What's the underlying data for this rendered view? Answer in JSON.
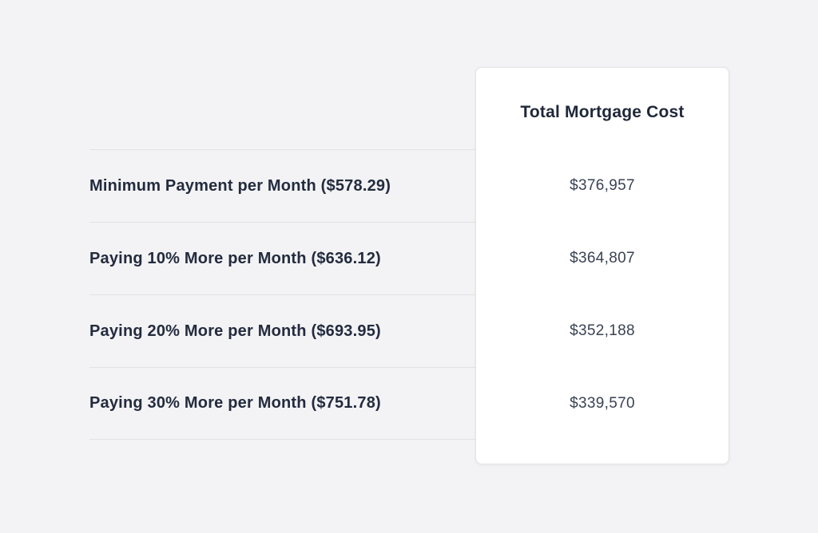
{
  "colors": {
    "page_background": "#f3f3f5",
    "card_background": "#ffffff",
    "divider": "#e1e2e7",
    "heading_text": "#1f2739",
    "label_text": "#232b3e",
    "value_text": "#3a4254"
  },
  "chart_data": {
    "type": "table",
    "title": "Total Mortgage Cost",
    "categories": [
      "Minimum Payment per Month ($578.29)",
      "Paying 10% More per Month ($636.12)",
      "Paying 20% More per Month ($693.95)",
      "Paying 30% More per Month ($751.78)"
    ],
    "monthly_payments_usd": [
      578.29,
      636.12,
      693.95,
      751.78
    ],
    "values": [
      376957,
      364807,
      352188,
      339570
    ],
    "value_labels": [
      "$376,957",
      "$364,807",
      "$352,188",
      "$339,570"
    ],
    "layout": {
      "value_column_style": "elevated-white-card",
      "row_dividers": true,
      "legend_position": "none"
    }
  }
}
